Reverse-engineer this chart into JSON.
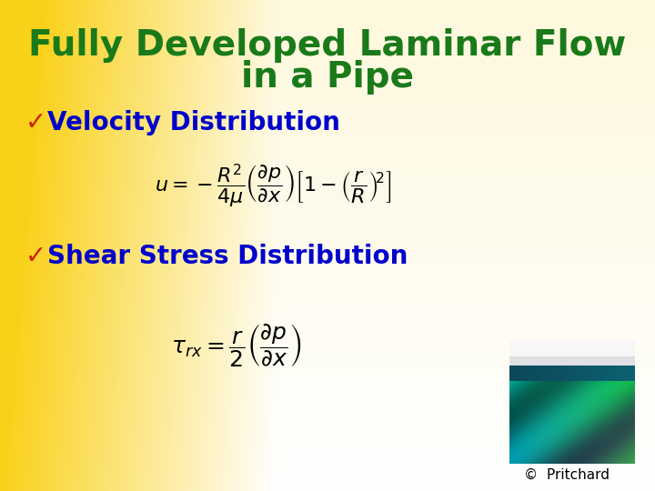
{
  "title_line1": "Fully Developed Laminar Flow",
  "title_line2": "in a Pipe",
  "title_color": "#1a7a1a",
  "title_fontsize": 28,
  "title_fontweight": "bold",
  "bullet1_text": "Velocity Distribution",
  "bullet2_text": "Shear Stress Distribution",
  "bullet_color": "#0000cc",
  "bullet_fontsize": 20,
  "bullet_fontweight": "bold",
  "check_color": "#cc2200",
  "eq_color": "black",
  "eq1_fontsize": 16,
  "eq2_fontsize": 18,
  "copyright_text": "©  Pritchard",
  "copyright_fontsize": 11,
  "copyright_color": "black",
  "gold_color": [
    0.98,
    0.82,
    0.1
  ],
  "cream_color": [
    1.0,
    0.97,
    0.88
  ],
  "white_color": [
    1.0,
    1.0,
    1.0
  ],
  "gradient_mid": 0.42
}
